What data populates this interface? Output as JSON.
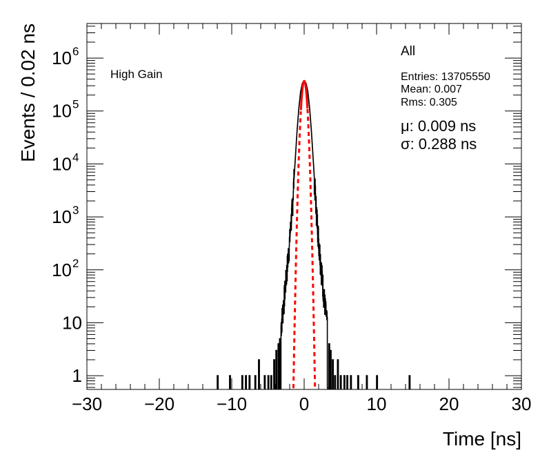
{
  "chart_data": {
    "type": "histogram",
    "xlabel": "Time [ns]",
    "ylabel": "Events / 0.02 ns",
    "xlim": [
      -30,
      30
    ],
    "ylim": [
      0.55,
      4500000
    ],
    "yscale": "log",
    "x_ticks": [
      "−30",
      "−20",
      "−10",
      "0",
      "10",
      "20",
      "30"
    ],
    "x_tick_values": [
      -30,
      -20,
      -10,
      0,
      10,
      20,
      30
    ],
    "y_ticks": [
      {
        "value": 1,
        "label": "1"
      },
      {
        "value": 10,
        "label": "10"
      },
      {
        "value": 100,
        "base": "10",
        "exp": "2"
      },
      {
        "value": 1000,
        "base": "10",
        "exp": "3"
      },
      {
        "value": 10000,
        "base": "10",
        "exp": "4"
      },
      {
        "value": 100000,
        "base": "10",
        "exp": "5"
      },
      {
        "value": 1000000,
        "base": "10",
        "exp": "6"
      }
    ],
    "gain_label": "High Gain",
    "stats": {
      "title": "All",
      "entries": "Entries: 13705550",
      "mean": "Mean: 0.007",
      "rms": "Rms: 0.305"
    },
    "fit": {
      "mu_text": "μ: 0.009 ns",
      "sigma_text": "σ: 0.288 ns",
      "mu": 0.009,
      "sigma": 0.288,
      "peak": 370000,
      "color": "#ff0000"
    },
    "histogram_color": "#000000",
    "bin_width": 0.02,
    "core_range": [
      -3.2,
      3.2
    ],
    "tail_profile": [
      [
        -3.2,
        8
      ],
      [
        -2.8,
        25
      ],
      [
        -2.4,
        90
      ],
      [
        -2.0,
        350
      ],
      [
        -1.6,
        1800
      ],
      [
        -1.3,
        9000
      ],
      [
        -1.0,
        40000
      ],
      [
        -0.75,
        110000
      ],
      [
        -0.5,
        230000
      ],
      [
        -0.25,
        330000
      ],
      [
        0.0,
        370000
      ],
      [
        0.25,
        330000
      ],
      [
        0.5,
        230000
      ],
      [
        0.75,
        110000
      ],
      [
        1.0,
        40000
      ],
      [
        1.3,
        9000
      ],
      [
        1.6,
        1800
      ],
      [
        2.0,
        350
      ],
      [
        2.4,
        90
      ],
      [
        2.8,
        25
      ],
      [
        3.2,
        8
      ]
    ],
    "sparse_bins": [
      [
        -12.0,
        1
      ],
      [
        -10.3,
        1
      ],
      [
        -8.6,
        1
      ],
      [
        -8.1,
        1
      ],
      [
        -7.6,
        1
      ],
      [
        -6.8,
        1
      ],
      [
        -6.3,
        2
      ],
      [
        -5.5,
        1
      ],
      [
        -5.0,
        1
      ],
      [
        -4.6,
        1
      ],
      [
        -4.2,
        2
      ],
      [
        -3.9,
        3
      ],
      [
        -3.6,
        4
      ],
      [
        -3.4,
        5
      ],
      [
        3.4,
        4
      ],
      [
        3.6,
        3
      ],
      [
        3.9,
        2
      ],
      [
        4.2,
        1
      ],
      [
        4.6,
        2
      ],
      [
        5.0,
        1
      ],
      [
        5.5,
        1
      ],
      [
        5.9,
        1
      ],
      [
        6.4,
        1
      ],
      [
        7.4,
        1
      ],
      [
        8.6,
        1
      ],
      [
        10.0,
        1
      ],
      [
        14.5,
        1
      ]
    ]
  }
}
